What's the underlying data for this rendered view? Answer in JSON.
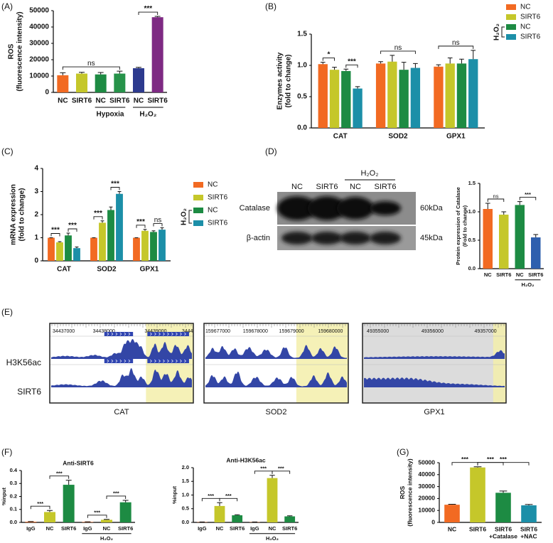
{
  "chart_data": [
    {
      "type": "bar",
      "panel": "(A)",
      "ylabel": [
        "ROS",
        "(fluorescence intensity)"
      ],
      "categories": [
        "NC",
        "SIRT6",
        "NC",
        "SIRT6",
        "NC",
        "SIRT6"
      ],
      "values": [
        10500,
        11500,
        11000,
        11500,
        14800,
        46000
      ],
      "errors": [
        1500,
        800,
        1200,
        1500,
        500,
        500
      ],
      "colors": [
        "#f26a22",
        "#c5c72a",
        "#1d8b43",
        "#27934a",
        "#2d3a8e",
        "#7e2a83"
      ],
      "ylim": [
        0,
        50000
      ],
      "yticks": [
        0,
        10000,
        20000,
        30000,
        40000,
        50000
      ],
      "groups": [
        {
          "label": "Hypoxia",
          "from": 2,
          "to": 3
        },
        {
          "label": "H₂O₂",
          "from": 4,
          "to": 5
        }
      ],
      "annotations": [
        {
          "text": "ns",
          "from": 0,
          "to": 3
        },
        {
          "text": "***",
          "from": 4,
          "to": 5
        }
      ]
    },
    {
      "type": "bar",
      "panel": "(B)",
      "ylabel": [
        "Enzymes activity",
        "(fold to change)"
      ],
      "categories": [
        "CAT",
        "SOD2",
        "GPX1"
      ],
      "series": [
        {
          "name": "NC",
          "color": "#f26a22",
          "values": [
            1.02,
            1.03,
            0.98
          ],
          "errors": [
            0.03,
            0.03,
            0.03
          ]
        },
        {
          "name": "SIRT6",
          "color": "#c5c72a",
          "values": [
            0.93,
            1.06,
            1.03
          ],
          "errors": [
            0.04,
            0.1,
            0.09
          ]
        },
        {
          "name": "NC",
          "color": "#1d8b43",
          "values": [
            0.91,
            0.93,
            1.03
          ],
          "errors": [
            0.03,
            0.12,
            0.07
          ]
        },
        {
          "name": "SIRT6",
          "color": "#1c8fa8",
          "values": [
            0.63,
            0.96,
            1.1
          ],
          "errors": [
            0.03,
            0.07,
            0.14
          ]
        }
      ],
      "legend_group": {
        "label": "H₂O₂",
        "from": 2,
        "to": 3
      },
      "ylim": [
        0,
        1.5
      ],
      "yticks": [
        {
          "value": 0,
          "label": "0.0"
        },
        {
          "value": 0.5,
          "label": "0.5"
        },
        {
          "value": 1,
          "label": "1.0"
        },
        {
          "value": 1.5,
          "label": "1.5"
        }
      ],
      "annotations": [
        {
          "text": "*",
          "from": 0,
          "to": 1
        },
        {
          "text": "***",
          "from": 2,
          "to": 3
        },
        {
          "text": "ns",
          "from": 4,
          "to": 7
        },
        {
          "text": "ns",
          "from": 8,
          "to": 11
        }
      ]
    },
    {
      "type": "bar",
      "panel": "(C)",
      "ylabel": [
        "mRNA expression",
        "(fold to change)"
      ],
      "categories": [
        "CAT",
        "SOD2",
        "GPX1"
      ],
      "series": [
        {
          "name": "NC",
          "color": "#f26a22",
          "values": [
            1.0,
            1.0,
            1.0
          ],
          "errors": [
            0,
            0,
            0
          ]
        },
        {
          "name": "SIRT6",
          "color": "#c5c72a",
          "values": [
            0.8,
            1.65,
            1.3
          ],
          "errors": [
            0.03,
            0.08,
            0.06
          ]
        },
        {
          "name": "NC",
          "color": "#1d8b43",
          "values": [
            1.1,
            2.2,
            1.25
          ],
          "errors": [
            0.1,
            0.13,
            0.05
          ]
        },
        {
          "name": "SIRT6",
          "color": "#1c8fa8",
          "values": [
            0.55,
            2.9,
            1.35
          ],
          "errors": [
            0.05,
            0.1,
            0.08
          ]
        }
      ],
      "legend_group": {
        "label": "H₂O₂",
        "from": 2,
        "to": 3
      },
      "ylim": [
        0,
        4
      ],
      "yticks": [
        0,
        1,
        2,
        3,
        4
      ],
      "annotations": [
        {
          "text": "***",
          "from": 0,
          "to": 1
        },
        {
          "text": "***",
          "from": 2,
          "to": 3
        },
        {
          "text": "***",
          "from": 4,
          "to": 5
        },
        {
          "text": "***",
          "from": 6,
          "to": 7
        },
        {
          "text": "***",
          "from": 8,
          "to": 9
        },
        {
          "text": "ns",
          "from": 10,
          "to": 11
        }
      ]
    },
    {
      "type": "bar",
      "panel": "(D)",
      "ylabel": [
        "Protein expression of Catalase",
        "(Fold to change)"
      ],
      "categories": [
        "NC",
        "SIRT6",
        "NC",
        "SIRT6"
      ],
      "values": [
        1.05,
        0.95,
        1.12,
        0.55
      ],
      "errors": [
        0.1,
        0.05,
        0.06,
        0.05
      ],
      "colors": [
        "#f26a22",
        "#c5c72a",
        "#1d8b43",
        "#2e5fae"
      ],
      "ylim": [
        0,
        1.5
      ],
      "yticks": [
        {
          "value": 0,
          "label": "0.0"
        },
        {
          "value": 0.5,
          "label": "0.5"
        },
        {
          "value": 1,
          "label": "1.0"
        },
        {
          "value": 1.5,
          "label": "1.5"
        }
      ],
      "groups": [
        {
          "label": "H₂O₂",
          "from": 2,
          "to": 3
        }
      ],
      "annotations": [
        {
          "text": "ns",
          "from": 0,
          "to": 1
        },
        {
          "text": "***",
          "from": 2,
          "to": 3
        }
      ]
    },
    {
      "type": "bar",
      "panel": "(F)",
      "title": "Anti-SIRT6",
      "ylabel": [
        "%input"
      ],
      "categories": [
        "IgG",
        "NC",
        "SIRT6",
        "IgG",
        "NC",
        "SIRT6"
      ],
      "values": [
        0.005,
        0.08,
        0.29,
        0.003,
        0.02,
        0.155
      ],
      "errors": [
        0.002,
        0.012,
        0.035,
        0.002,
        0.003,
        0.015
      ],
      "colors": [
        "#f26a22",
        "#c5c72a",
        "#1d8b43",
        "#f26a22",
        "#c5c72a",
        "#1d8b43"
      ],
      "ylim": [
        0,
        0.4
      ],
      "yticks": [
        {
          "value": 0,
          "label": "0.0"
        },
        {
          "value": 0.1,
          "label": "0.1"
        },
        {
          "value": 0.2,
          "label": "0.2"
        },
        {
          "value": 0.3,
          "label": "0.3"
        },
        {
          "value": 0.4,
          "label": "0.4"
        }
      ],
      "groups": [
        {
          "label": "H₂O₂",
          "from": 3,
          "to": 5
        }
      ],
      "annotations": [
        {
          "text": "***",
          "from": 0,
          "to": 1
        },
        {
          "text": "***",
          "from": 1,
          "to": 2
        },
        {
          "text": "***",
          "from": 3,
          "to": 4
        },
        {
          "text": "***",
          "from": 4,
          "to": 5
        }
      ]
    },
    {
      "type": "bar",
      "title": "Anti-H3K56ac",
      "ylabel": [
        "%input"
      ],
      "categories": [
        "IgG",
        "NC",
        "SIRT6",
        "IgG",
        "NC",
        "SIRT6"
      ],
      "values": [
        0.01,
        0.6,
        0.26,
        0.01,
        1.62,
        0.22
      ],
      "errors": [
        0.005,
        0.12,
        0.02,
        0.005,
        0.1,
        0.02
      ],
      "colors": [
        "#f26a22",
        "#c5c72a",
        "#1d8b43",
        "#f26a22",
        "#c5c72a",
        "#1d8b43"
      ],
      "ylim": [
        0,
        2
      ],
      "yticks": [
        {
          "value": 0,
          "label": "0.0"
        },
        {
          "value": 0.5,
          "label": "0.5"
        },
        {
          "value": 1,
          "label": "1.0"
        },
        {
          "value": 1.5,
          "label": "1.5"
        },
        {
          "value": 2,
          "label": "2.0"
        }
      ],
      "groups": [
        {
          "label": "H₂O₂",
          "from": 3,
          "to": 5
        }
      ],
      "annotations": [
        {
          "text": "***",
          "from": 0,
          "to": 1
        },
        {
          "text": "***",
          "from": 1,
          "to": 2
        },
        {
          "text": "***",
          "from": 3,
          "to": 4
        },
        {
          "text": "***",
          "from": 4,
          "to": 5
        }
      ]
    },
    {
      "type": "bar",
      "panel": "(G)",
      "ylabel": [
        "ROS",
        "(fluorescence intensity)"
      ],
      "categories": [
        "NC",
        "SIRT6",
        [
          "SIRT6",
          "+Catalase"
        ],
        [
          "SIRT6",
          "+NAC"
        ]
      ],
      "values": [
        14800,
        46000,
        24800,
        14300
      ],
      "errors": [
        400,
        600,
        1500,
        700
      ],
      "colors": [
        "#f26a22",
        "#c5c72a",
        "#1d8b43",
        "#1c8fa8"
      ],
      "ylim": [
        0,
        50000
      ],
      "yticks": [
        0,
        10000,
        20000,
        30000,
        40000,
        50000
      ],
      "annotations": [
        {
          "text": "***",
          "from": 0,
          "to": 1
        },
        {
          "text": "***",
          "from": 1,
          "to": 2
        },
        {
          "text": "***",
          "from": 1,
          "to": 3
        }
      ]
    }
  ],
  "blot": {
    "treatment": "H₂O₂",
    "lanes": [
      "NC",
      "SIRT6",
      "NC",
      "SIRT6"
    ],
    "bands": [
      {
        "protein": "Catalase",
        "size": "60kDa"
      },
      {
        "protein": "β-actin",
        "size": "45kDa"
      }
    ]
  },
  "tracks": {
    "panel": "(E)",
    "rows": [
      "H3K56ac",
      "SIRT6"
    ],
    "genes": [
      {
        "name": "CAT",
        "coords": [
          "34437000",
          "34438000",
          "34439000",
          "3444"
        ]
      },
      {
        "name": "SOD2",
        "coords": [
          "159677000",
          "159678000",
          "159679000",
          "159680000"
        ]
      },
      {
        "name": "GPX1",
        "coords": [
          "49355000",
          "49356000",
          "49357000"
        ]
      }
    ]
  }
}
